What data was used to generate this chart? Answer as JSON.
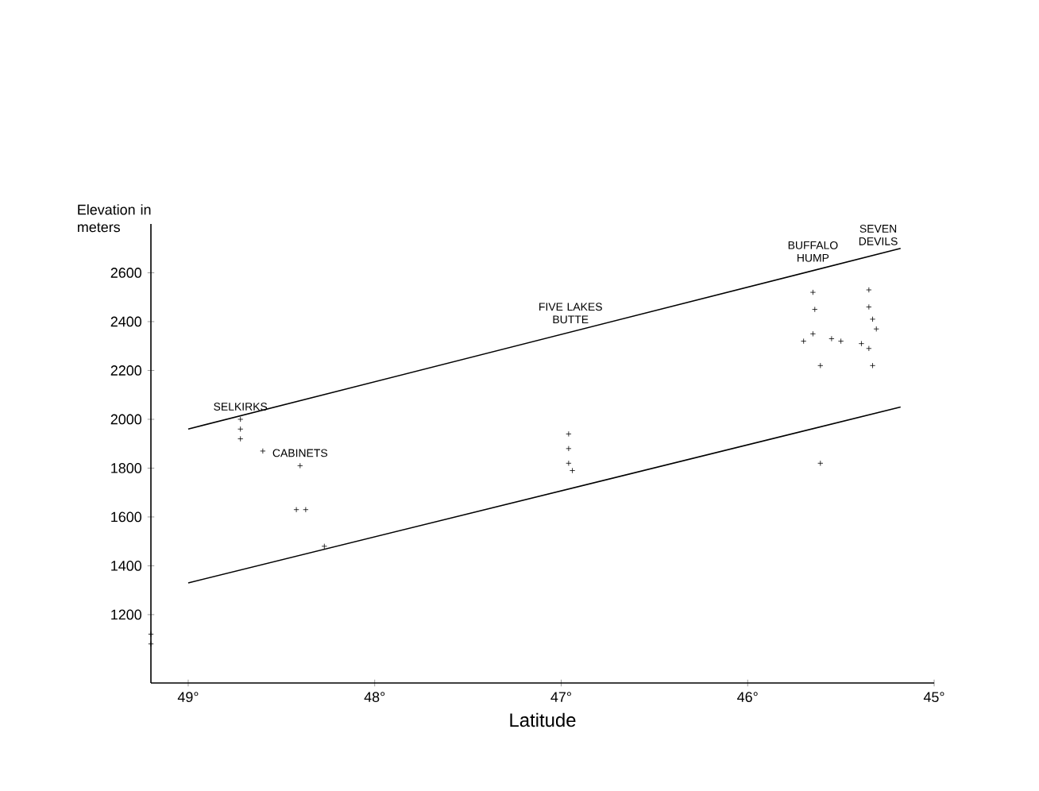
{
  "chart_data": {
    "type": "scatter",
    "xlabel": "Latitude",
    "ylabel": "Elevation in meters",
    "xlim": [
      49.2,
      45
    ],
    "ylim": [
      920,
      2800
    ],
    "xticks": [
      {
        "value": 49,
        "label": "49°"
      },
      {
        "value": 48,
        "label": "48°"
      },
      {
        "value": 47,
        "label": "47°"
      },
      {
        "value": 46,
        "label": "46°"
      },
      {
        "value": 45,
        "label": "45°"
      }
    ],
    "yticks": [
      1200,
      1400,
      1600,
      1800,
      2000,
      2200,
      2400,
      2600
    ],
    "series": [
      {
        "color": "#000000",
        "marker": "cross",
        "x": [
          49.2,
          49.2,
          48.72,
          48.72,
          48.72,
          48.6,
          48.4,
          48.42,
          48.37,
          48.27,
          46.96,
          46.96,
          46.96,
          46.94,
          45.65,
          45.64,
          45.65,
          45.7,
          45.55,
          45.5,
          45.61,
          45.61,
          45.35,
          45.35,
          45.33,
          45.31,
          45.39,
          45.35,
          45.33
        ],
        "values": [
          1120,
          1080,
          2000,
          1960,
          1920,
          1870,
          1810,
          1630,
          1630,
          1480,
          1940,
          1880,
          1820,
          1790,
          2520,
          2450,
          2350,
          2320,
          2330,
          2320,
          2220,
          1820,
          2530,
          2460,
          2410,
          2370,
          2310,
          2290,
          2220
        ]
      },
      {
        "type": "line",
        "color": "#000000",
        "marker": "none",
        "x": [
          49,
          45.18
        ],
        "values": [
          1960,
          2700
        ]
      },
      {
        "type": "line",
        "color": "#000000",
        "marker": "none",
        "x": [
          49,
          45.18
        ],
        "values": [
          1330,
          2050
        ]
      }
    ],
    "annotations": [
      {
        "text": "SELKIRKS",
        "x": 48.72,
        "y": 2000
      },
      {
        "text": "CABINETS",
        "x": 48.4,
        "y": 1810
      },
      {
        "text": "FIVE LAKES BUTTE",
        "x": 46.95,
        "y": 2357
      },
      {
        "text": "BUFFALO HUMP",
        "x": 45.65,
        "y": 2609
      },
      {
        "text": "SEVEN DEVILS",
        "x": 45.3,
        "y": 2677
      }
    ]
  }
}
